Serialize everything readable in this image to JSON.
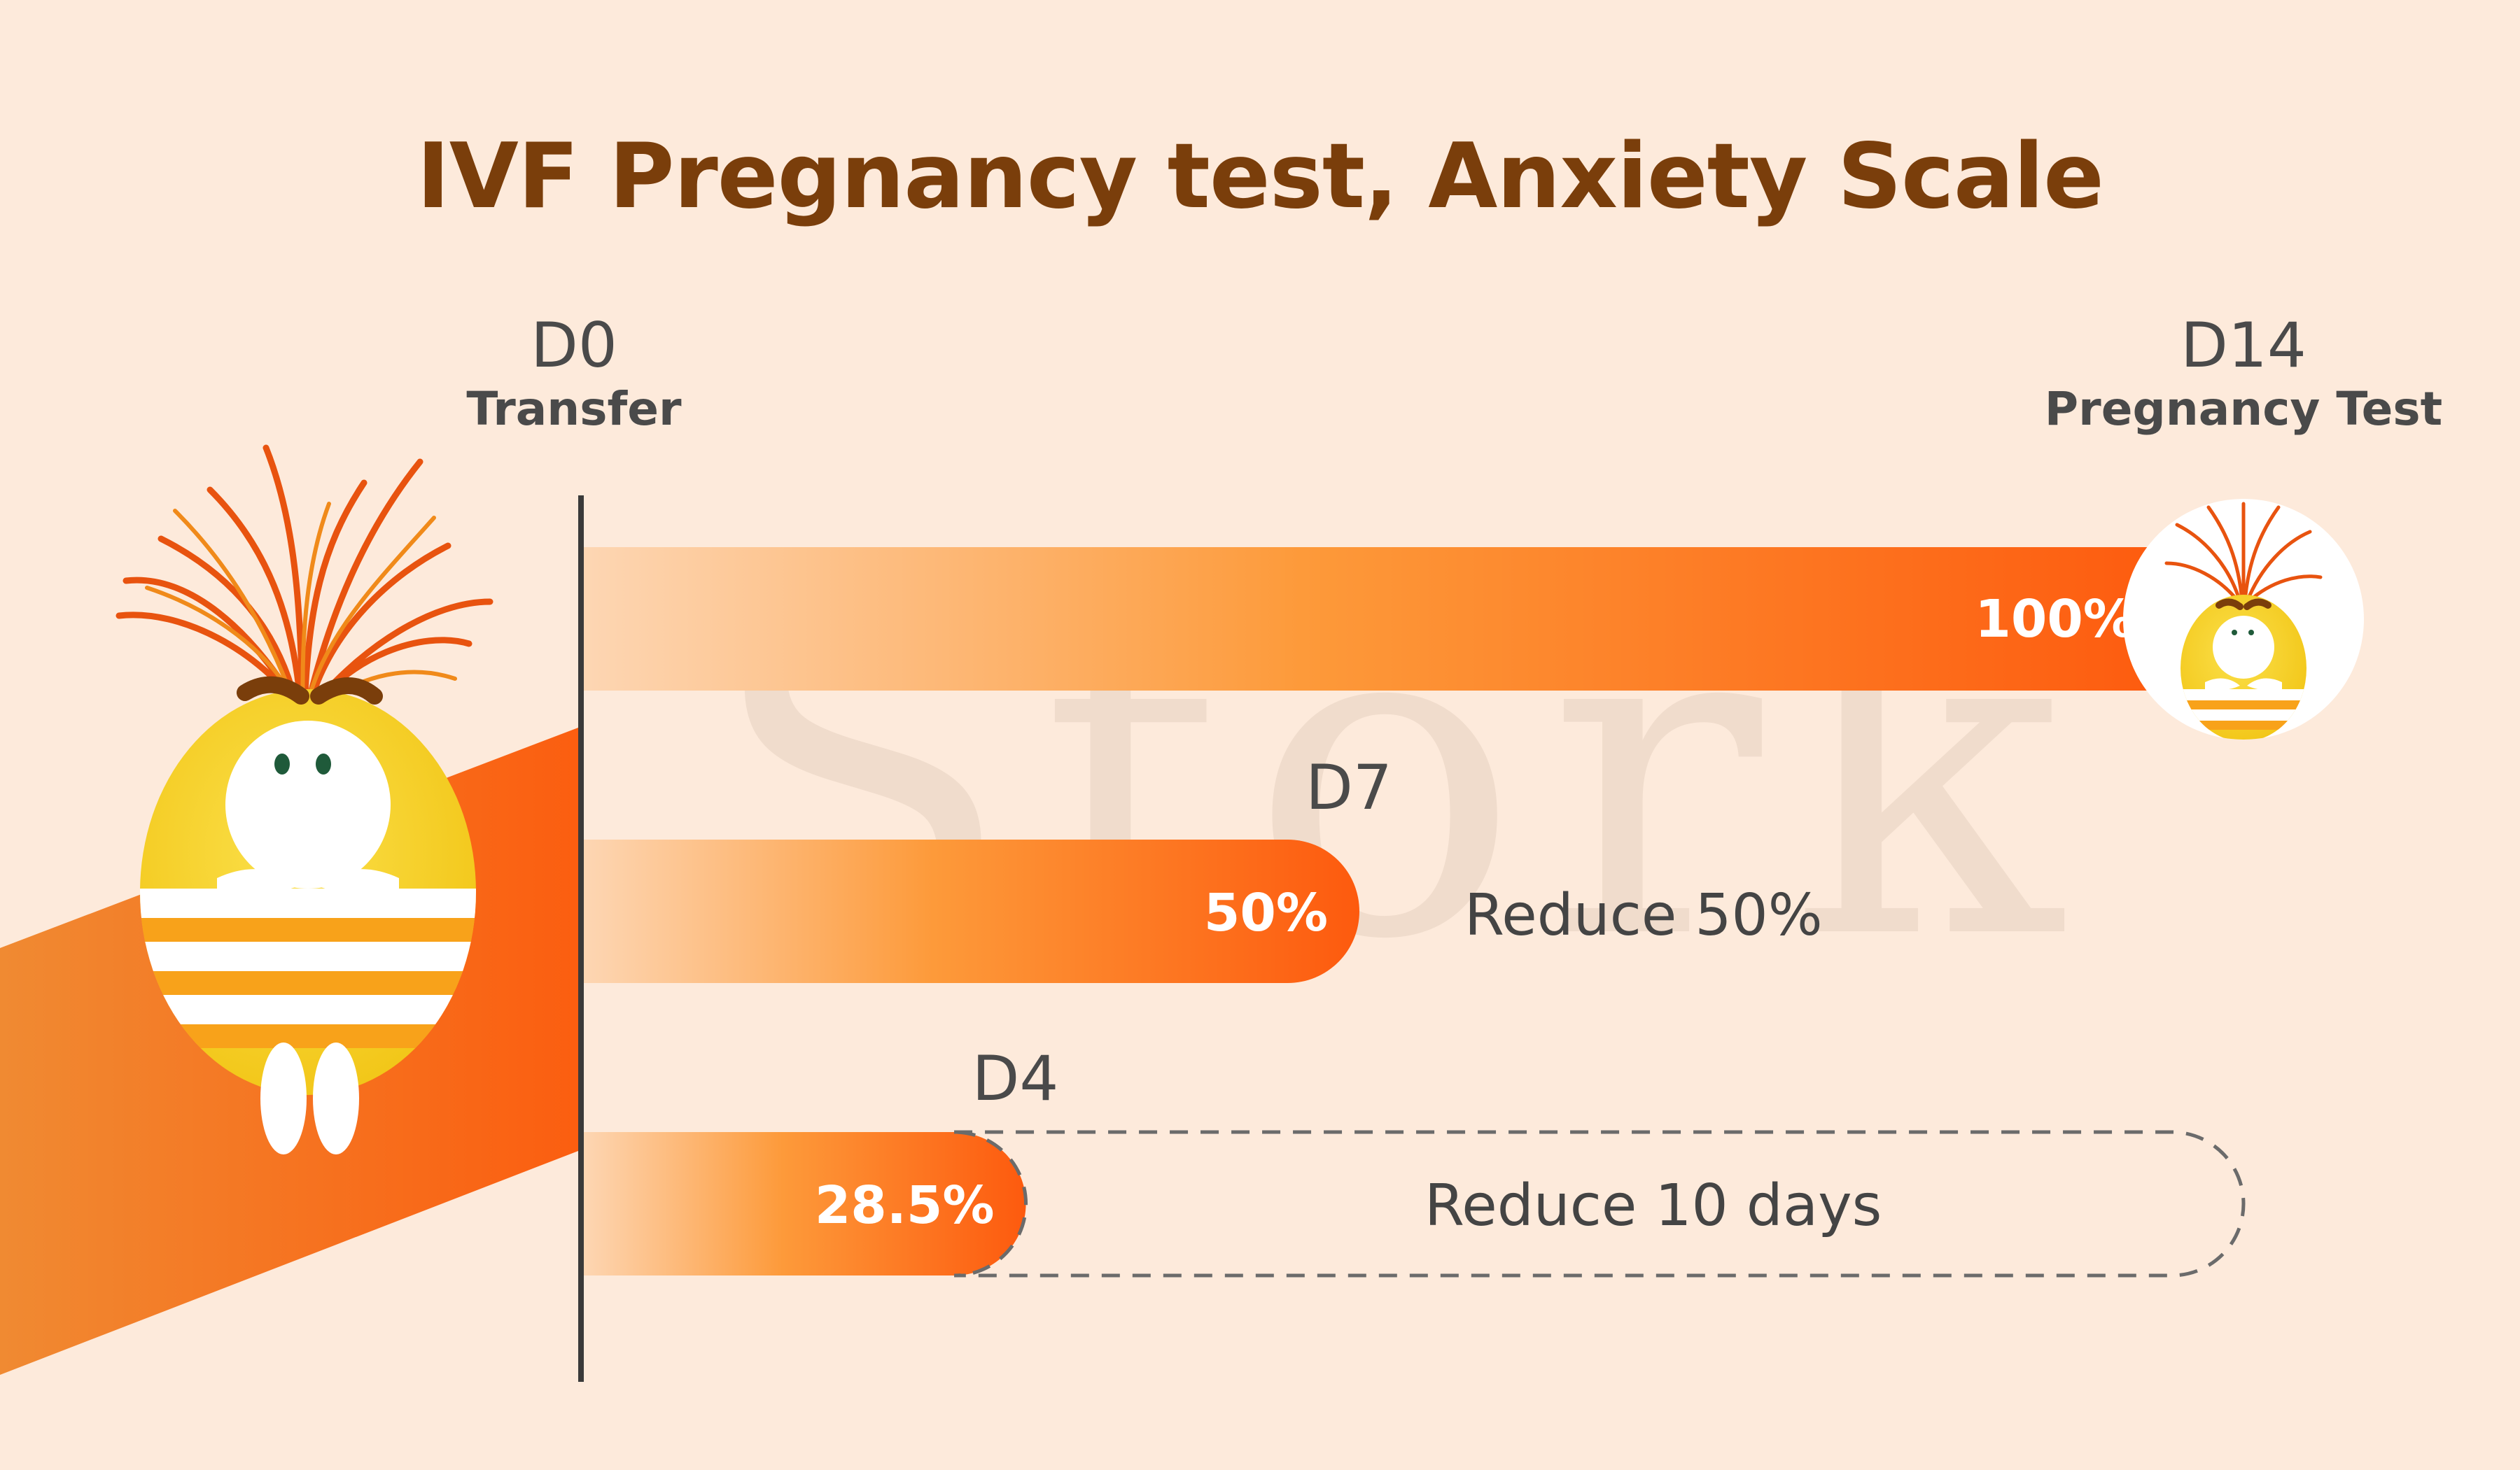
{
  "chart_data": {
    "type": "bar",
    "title": "IVF Pregnancy test, Anxiety Scale",
    "categories": [
      "D14",
      "D7",
      "D4"
    ],
    "values": [
      100,
      50,
      28.5
    ],
    "value_labels": [
      "100%",
      "50%",
      "28.5%"
    ],
    "xlim": [
      0,
      100
    ],
    "orientation": "horizontal",
    "start_label": {
      "code": "D0",
      "sub": "Transfer"
    },
    "end_label": {
      "code": "D14",
      "sub": "Pregnancy Test"
    },
    "annotations": {
      "reduce_percent": "Reduce 50%",
      "reduce_days": "Reduce 10 days"
    },
    "bar_color": "#fd6a10",
    "grid": false
  },
  "watermark": "Stork",
  "colors": {
    "background": "#fdeadb",
    "title": "#7a3e0b",
    "bar_start": "#fdd3ad",
    "bar_end": "#fd5a0e",
    "mascot_body": "#f7d21f",
    "mascot_hair": "#e8530f"
  },
  "icons": [
    "mascot-anxious",
    "mascot-avatar"
  ]
}
